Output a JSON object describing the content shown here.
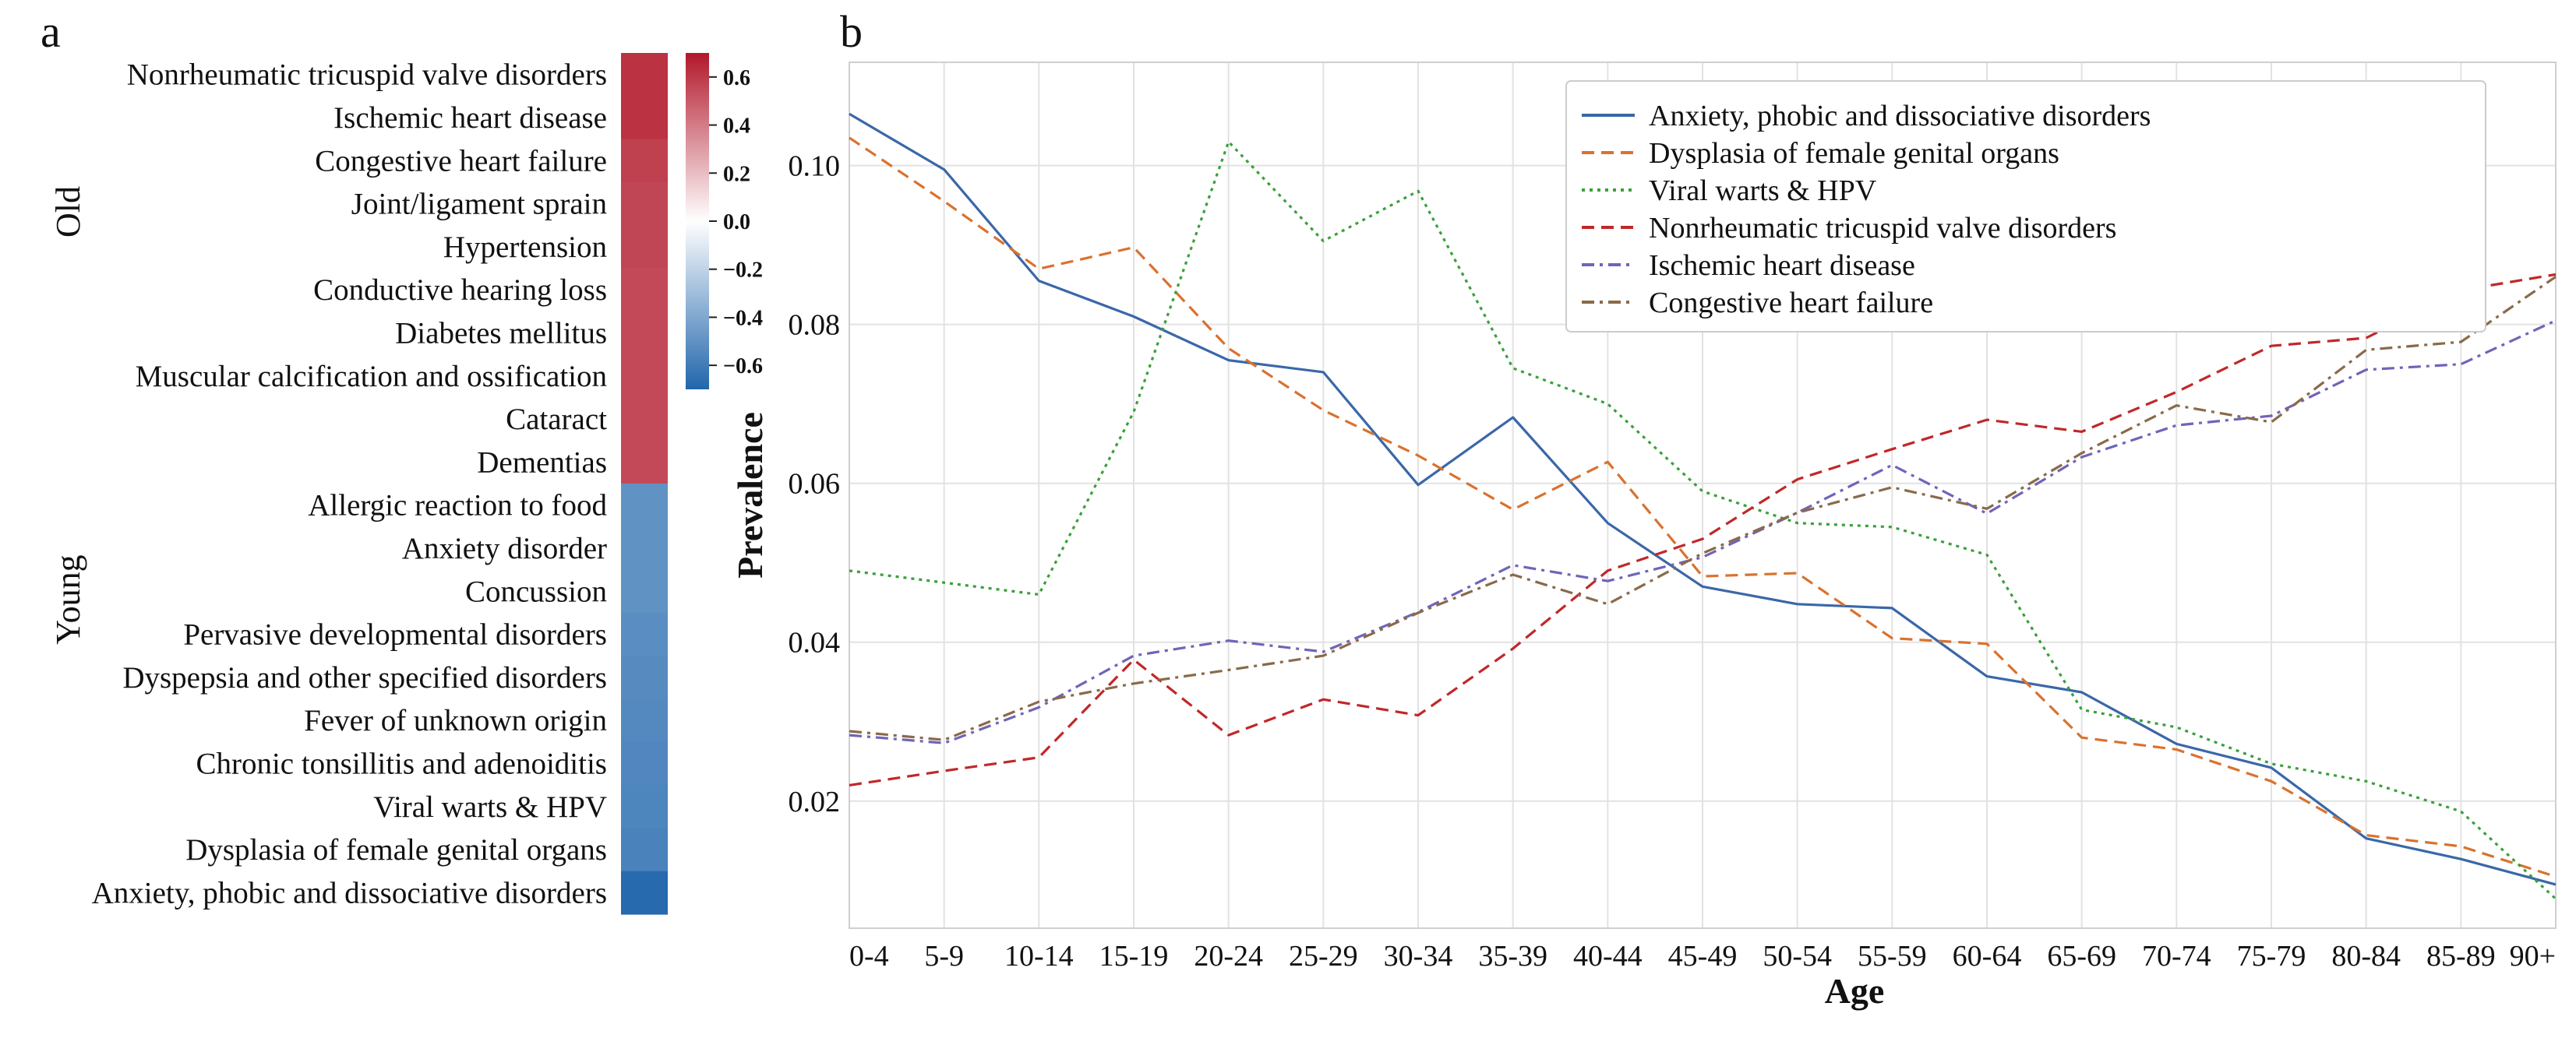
{
  "chart_data": [
    {
      "type": "heatmap",
      "panel_label": "a",
      "group_labels": [
        "Old",
        "Young"
      ],
      "rows": [
        {
          "label": "Nonrheumatic tricuspid valve disorders",
          "value": 0.62,
          "group": "Old"
        },
        {
          "label": "Ischemic heart disease",
          "value": 0.62,
          "group": "Old"
        },
        {
          "label": "Congestive heart failure",
          "value": 0.58,
          "group": "Old"
        },
        {
          "label": "Joint/ligament sprain",
          "value": 0.56,
          "group": "Old"
        },
        {
          "label": "Hypertension",
          "value": 0.56,
          "group": "Old"
        },
        {
          "label": "Conductive hearing loss",
          "value": 0.55,
          "group": "Old"
        },
        {
          "label": "Diabetes mellitus",
          "value": 0.55,
          "group": "Old"
        },
        {
          "label": "Muscular calcification and ossification",
          "value": 0.55,
          "group": "Old"
        },
        {
          "label": "Cataract",
          "value": 0.55,
          "group": "Old"
        },
        {
          "label": "Dementias",
          "value": 0.55,
          "group": "Old"
        },
        {
          "label": "Allergic reaction to food",
          "value": -0.5,
          "group": "Young"
        },
        {
          "label": "Anxiety disorder",
          "value": -0.5,
          "group": "Young"
        },
        {
          "label": "Concussion",
          "value": -0.5,
          "group": "Young"
        },
        {
          "label": "Pervasive developmental disorders",
          "value": -0.52,
          "group": "Young"
        },
        {
          "label": "Dyspepsia and other specified disorders",
          "value": -0.53,
          "group": "Young"
        },
        {
          "label": "Fever of unknown origin",
          "value": -0.54,
          "group": "Young"
        },
        {
          "label": "Chronic tonsillitis and adenoiditis",
          "value": -0.55,
          "group": "Young"
        },
        {
          "label": "Viral warts & HPV",
          "value": -0.56,
          "group": "Young"
        },
        {
          "label": "Dysplasia of female genital organs",
          "value": -0.57,
          "group": "Young"
        },
        {
          "label": "Anxiety, phobic and dissociative disorders",
          "value": -0.68,
          "group": "Young"
        }
      ],
      "colorbar": {
        "min": -0.7,
        "max": 0.7,
        "ticks": [
          0.6,
          0.4,
          0.2,
          0.0,
          -0.2,
          -0.4,
          -0.6
        ],
        "tick_labels": [
          "0.6",
          "0.4",
          "0.2",
          "0.0",
          "−0.2",
          "−0.4",
          "−0.6"
        ],
        "colors": {
          "negative": "#2166ac",
          "neutral": "#ffffff",
          "positive": "#b2182b"
        }
      }
    },
    {
      "type": "line",
      "panel_label": "b",
      "xlabel": "Age",
      "ylabel": "Prevalence",
      "categories": [
        "0-4",
        "5-9",
        "10-14",
        "15-19",
        "20-24",
        "25-29",
        "30-34",
        "35-39",
        "40-44",
        "45-49",
        "50-54",
        "55-59",
        "60-64",
        "65-69",
        "70-74",
        "75-79",
        "80-84",
        "85-89",
        "90+"
      ],
      "ylim": [
        0.004,
        0.113
      ],
      "yticks": [
        0.02,
        0.04,
        0.06,
        0.08,
        0.1
      ],
      "ytick_labels": [
        "0.02",
        "0.04",
        "0.06",
        "0.08",
        "0.10"
      ],
      "grid": true,
      "legend_position": "top-right",
      "series": [
        {
          "name": "Anxiety, phobic and dissociative disorders",
          "color": "#3a67a8",
          "dash": "solid",
          "values": [
            0.1065,
            0.0995,
            0.0855,
            0.081,
            0.0755,
            0.074,
            0.0598,
            0.0683,
            0.055,
            0.047,
            0.0448,
            0.0443,
            0.0357,
            0.0337,
            0.0272,
            0.0242,
            0.0153,
            0.0127,
            0.0095
          ]
        },
        {
          "name": "Dysplasia of female genital organs",
          "color": "#d9722e",
          "dash": "dashed",
          "values": [
            0.1035,
            0.0955,
            0.087,
            0.0897,
            0.077,
            0.0692,
            0.0635,
            0.0567,
            0.0627,
            0.0483,
            0.0487,
            0.0405,
            0.0398,
            0.028,
            0.0265,
            0.0225,
            0.0157,
            0.0143,
            0.0105
          ]
        },
        {
          "name": "Viral warts & HPV",
          "color": "#3aa03a",
          "dash": "dotted",
          "values": [
            0.049,
            0.0475,
            0.046,
            0.069,
            0.103,
            0.0905,
            0.0968,
            0.0745,
            0.07,
            0.059,
            0.055,
            0.0545,
            0.051,
            0.0315,
            0.0293,
            0.0247,
            0.0225,
            0.0187,
            0.0077
          ]
        },
        {
          "name": "Nonrheumatic tricuspid valve disorders",
          "color": "#c0282a",
          "dash": "dashed",
          "values": [
            0.022,
            0.0238,
            0.0255,
            0.0378,
            0.0283,
            0.0328,
            0.0308,
            0.0392,
            0.049,
            0.053,
            0.0605,
            0.0643,
            0.068,
            0.0665,
            0.0715,
            0.0773,
            0.0783,
            0.0843,
            0.0863
          ]
        },
        {
          "name": "Ischemic heart disease",
          "color": "#7064b8",
          "dash": "dashdot",
          "values": [
            0.0283,
            0.0273,
            0.0318,
            0.0383,
            0.0402,
            0.0388,
            0.0438,
            0.0497,
            0.0477,
            0.0507,
            0.0563,
            0.0623,
            0.0562,
            0.0633,
            0.0673,
            0.0685,
            0.0743,
            0.075,
            0.0805
          ]
        },
        {
          "name": "Congestive heart failure",
          "color": "#8a6a4a",
          "dash": "dashdot",
          "values": [
            0.0288,
            0.0277,
            0.0325,
            0.0348,
            0.0365,
            0.0383,
            0.0437,
            0.0485,
            0.0448,
            0.0512,
            0.0563,
            0.0595,
            0.0568,
            0.0638,
            0.0698,
            0.0677,
            0.0768,
            0.0778,
            0.086
          ]
        }
      ]
    }
  ]
}
